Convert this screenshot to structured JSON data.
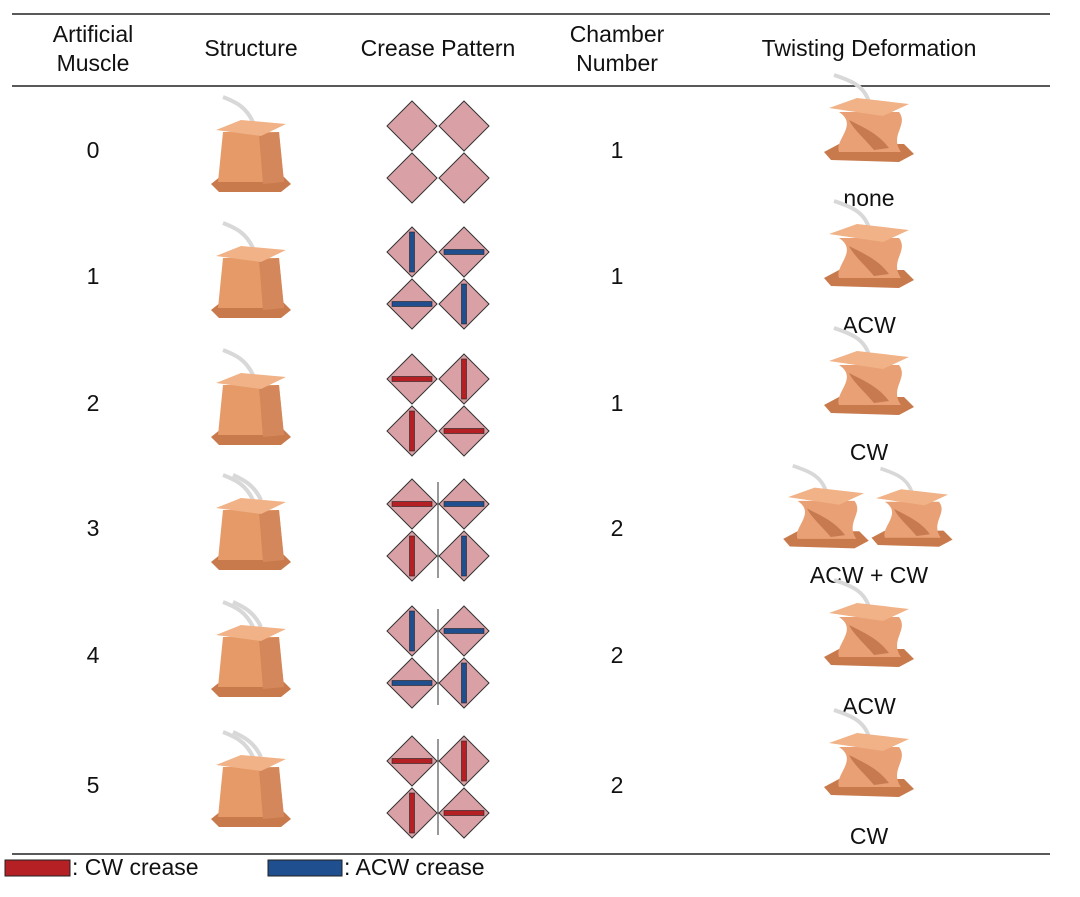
{
  "table": {
    "header": [
      [
        "Artificial",
        "Muscle"
      ],
      "Structure",
      "Crease Pattern",
      [
        "Chamber",
        "Number"
      ],
      "Twisting Deformation"
    ],
    "rows": [
      [
        "0",
        "1",
        "none"
      ],
      [
        "1",
        "1",
        "ACW"
      ],
      [
        "2",
        "1",
        "CW"
      ],
      [
        "3",
        "2",
        "ACW + CW"
      ],
      [
        "4",
        "2",
        "ACW"
      ],
      [
        "5",
        "2",
        "CW"
      ]
    ]
  },
  "legend": [
    ": CW crease",
    ": ACW crease"
  ]
}
